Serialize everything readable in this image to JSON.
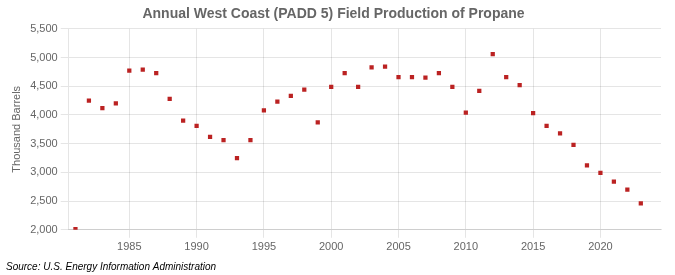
{
  "chart_data": {
    "type": "scatter",
    "title": "Annual West Coast (PADD 5) Field Production of Propane",
    "ylabel": "Thousand Barrels",
    "annotations": [
      "Source: U.S. Energy Information Administration"
    ],
    "x": [
      1981,
      1982,
      1983,
      1984,
      1985,
      1986,
      1987,
      1988,
      1989,
      1990,
      1991,
      1992,
      1993,
      1994,
      1995,
      1996,
      1997,
      1998,
      1999,
      2000,
      2001,
      2002,
      2003,
      2004,
      2005,
      2006,
      2007,
      2008,
      2009,
      2010,
      2011,
      2012,
      2013,
      2014,
      2015,
      2016,
      2017,
      2018,
      2019,
      2020,
      2021,
      2022,
      2023
    ],
    "values": [
      2010,
      4250,
      4120,
      4200,
      4770,
      4790,
      4730,
      4280,
      3900,
      3810,
      3620,
      3560,
      3250,
      3560,
      4080,
      4230,
      4330,
      4440,
      3870,
      4490,
      4730,
      4490,
      4830,
      4840,
      4660,
      4660,
      4650,
      4730,
      4490,
      4040,
      4420,
      5060,
      4660,
      4520,
      4030,
      3810,
      3680,
      3480,
      3120,
      2990,
      2840,
      2700,
      2460
    ],
    "color": "#bb2222",
    "marker": "square",
    "xlim": [
      1980.5,
      2024.5
    ],
    "xticks": [
      1985,
      1990,
      1995,
      2000,
      2005,
      2010,
      2015,
      2020
    ],
    "ylim": [
      2000,
      5500
    ],
    "yticks": [
      {
        "value": 2000,
        "label": "2,000"
      },
      {
        "value": 2500,
        "label": "2,500"
      },
      {
        "value": 3000,
        "label": "3,000"
      },
      {
        "value": 3500,
        "label": "3,500"
      },
      {
        "value": 4000,
        "label": "4,000"
      },
      {
        "value": 4500,
        "label": "4,500"
      },
      {
        "value": 5000,
        "label": "5,000"
      },
      {
        "value": 5500,
        "label": "5,500"
      }
    ],
    "grid": true
  }
}
